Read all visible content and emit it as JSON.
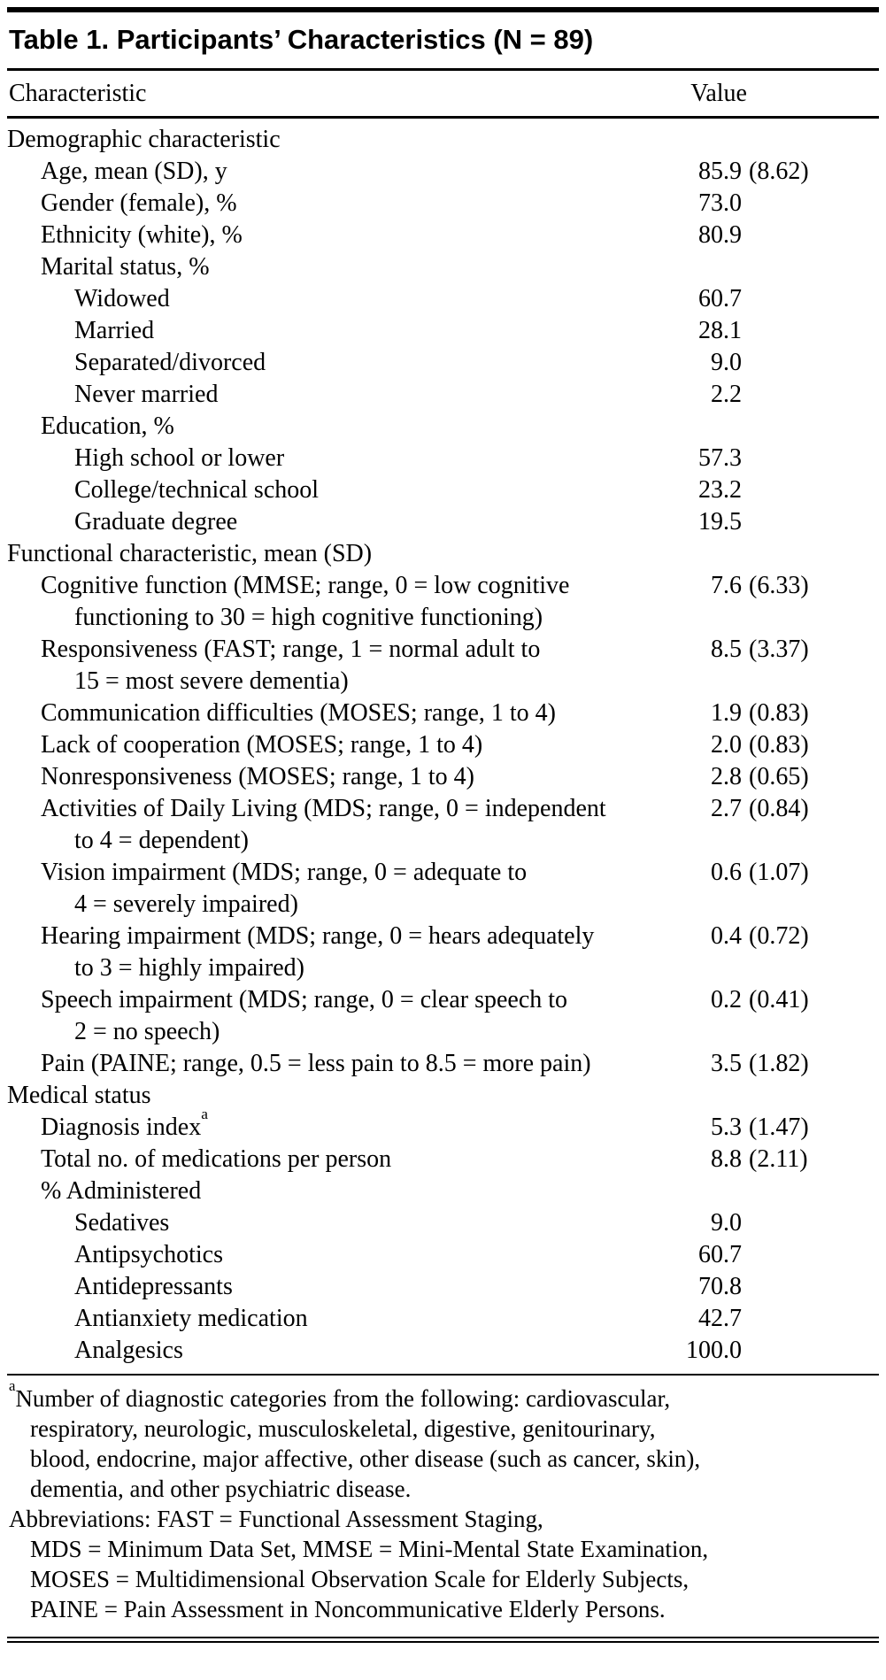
{
  "page": {
    "background_color": "#ffffff",
    "text_color": "#000000",
    "rule_color": "#000000"
  },
  "table": {
    "title": "Table 1. Participants’ Characteristics (N = 89)",
    "columns": {
      "characteristic": "Characteristic",
      "value": "Value"
    },
    "rows": [
      {
        "indent": 0,
        "label": [
          "Demographic characteristic"
        ]
      },
      {
        "indent": 1,
        "label": [
          "Age, mean (SD), y"
        ],
        "num": "85.9",
        "sd": "(8.62)"
      },
      {
        "indent": 1,
        "label": [
          "Gender (female), %"
        ],
        "num": "73.0"
      },
      {
        "indent": 1,
        "label": [
          "Ethnicity (white), %"
        ],
        "num": "80.9"
      },
      {
        "indent": 1,
        "label": [
          "Marital status, %"
        ]
      },
      {
        "indent": 2,
        "label": [
          "Widowed"
        ],
        "num": "60.7"
      },
      {
        "indent": 2,
        "label": [
          "Married"
        ],
        "num": "28.1"
      },
      {
        "indent": 2,
        "label": [
          "Separated/divorced"
        ],
        "num": "9.0"
      },
      {
        "indent": 2,
        "label": [
          "Never married"
        ],
        "num": "2.2"
      },
      {
        "indent": 1,
        "label": [
          "Education, %"
        ]
      },
      {
        "indent": 2,
        "label": [
          "High school or lower"
        ],
        "num": "57.3"
      },
      {
        "indent": 2,
        "label": [
          "College/technical school"
        ],
        "num": "23.2"
      },
      {
        "indent": 2,
        "label": [
          "Graduate degree"
        ],
        "num": "19.5"
      },
      {
        "indent": 0,
        "label": [
          "Functional characteristic, mean (SD)"
        ]
      },
      {
        "indent": 1,
        "label": [
          "Cognitive function (MMSE; range, 0 = low cognitive",
          "functioning to 30 = high cognitive functioning)"
        ],
        "num": "7.6",
        "sd": "(6.33)"
      },
      {
        "indent": 1,
        "label": [
          "Responsiveness (FAST; range, 1 = normal adult to",
          "15 = most severe dementia)"
        ],
        "num": "8.5",
        "sd": "(3.37)"
      },
      {
        "indent": 1,
        "label": [
          "Communication difficulties (MOSES; range, 1 to 4)"
        ],
        "num": "1.9",
        "sd": "(0.83)"
      },
      {
        "indent": 1,
        "label": [
          "Lack of cooperation (MOSES; range, 1 to 4)"
        ],
        "num": "2.0",
        "sd": "(0.83)"
      },
      {
        "indent": 1,
        "label": [
          "Nonresponsiveness (MOSES; range, 1 to 4)"
        ],
        "num": "2.8",
        "sd": "(0.65)"
      },
      {
        "indent": 1,
        "label": [
          "Activities of Daily Living (MDS; range, 0 = independent",
          "to 4 = dependent)"
        ],
        "num": "2.7",
        "sd": "(0.84)"
      },
      {
        "indent": 1,
        "label": [
          "Vision impairment (MDS; range, 0 = adequate to",
          "4 = severely impaired)"
        ],
        "num": "0.6",
        "sd": "(1.07)"
      },
      {
        "indent": 1,
        "label": [
          "Hearing impairment (MDS; range, 0 = hears adequately",
          "to 3 = highly impaired)"
        ],
        "num": "0.4",
        "sd": "(0.72)"
      },
      {
        "indent": 1,
        "label": [
          "Speech impairment (MDS; range, 0 = clear speech to",
          "2 = no speech)"
        ],
        "num": "0.2",
        "sd": "(0.41)"
      },
      {
        "indent": 1,
        "label": [
          "Pain (PAINE; range, 0.5 = less pain to 8.5 = more pain)"
        ],
        "num": "3.5",
        "sd": "(1.82)"
      },
      {
        "indent": 0,
        "label": [
          "Medical status"
        ]
      },
      {
        "indent": 1,
        "label": [
          "Diagnosis index"
        ],
        "sup": "a",
        "num": "5.3",
        "sd": "(1.47)"
      },
      {
        "indent": 1,
        "label": [
          "Total no. of medications per person"
        ],
        "num": "8.8",
        "sd": "(2.11)"
      },
      {
        "indent": 1,
        "label": [
          "% Administered"
        ]
      },
      {
        "indent": 2,
        "label": [
          "Sedatives"
        ],
        "num": "9.0"
      },
      {
        "indent": 2,
        "label": [
          "Antipsychotics"
        ],
        "num": "60.7"
      },
      {
        "indent": 2,
        "label": [
          "Antidepressants"
        ],
        "num": "70.8"
      },
      {
        "indent": 2,
        "label": [
          "Antianxiety medication"
        ],
        "num": "42.7"
      },
      {
        "indent": 2,
        "label": [
          "Analgesics"
        ],
        "num": "100.0"
      }
    ],
    "footnotes": [
      {
        "sup": "a",
        "lines": [
          "Number of diagnostic categories from the following: cardiovascular,",
          "respiratory, neurologic, musculoskeletal, digestive, genitourinary,",
          "blood, endocrine, major affective, other disease (such as cancer, skin),",
          "dementia, and other psychiatric disease."
        ]
      },
      {
        "lines": [
          "Abbreviations: FAST = Functional Assessment Staging,",
          "MDS = Minimum Data Set, MMSE = Mini-Mental State Examination,",
          "MOSES = Multidimensional Observation Scale for Elderly Subjects,",
          "PAINE = Pain Assessment in Noncommunicative Elderly Persons."
        ]
      }
    ]
  }
}
